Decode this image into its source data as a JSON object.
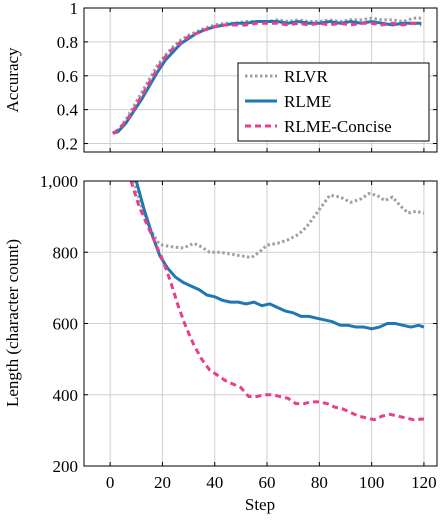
{
  "colors": {
    "rlvr": "#a0a0a0",
    "rlme": "#1f77b4",
    "rlme_concise": "#e83e8c",
    "grid": "#d0d0d0",
    "frame": "#000000"
  },
  "chart_data": [
    {
      "type": "line",
      "title": "",
      "xlabel": "",
      "ylabel": "Accuracy",
      "xlim": [
        -10,
        125
      ],
      "ylim": [
        0.15,
        1.0
      ],
      "xticks": [
        0,
        20,
        40,
        60,
        80,
        100,
        120
      ],
      "yticks": [
        0.2,
        0.4,
        0.6,
        0.8,
        1.0
      ],
      "ytick_labels": [
        "0.2",
        "0.4",
        "0.6",
        "0.8",
        "1"
      ],
      "x_tick_labels_shown": false,
      "grid": true,
      "legend": "center-right",
      "series": [
        {
          "name": "RLVR",
          "key": "rlvr",
          "style": "dotted",
          "points": [
            [
              1,
              0.26
            ],
            [
              3,
              0.28
            ],
            [
              6,
              0.34
            ],
            [
              9,
              0.42
            ],
            [
              12,
              0.5
            ],
            [
              15,
              0.58
            ],
            [
              18,
              0.66
            ],
            [
              21,
              0.72
            ],
            [
              24,
              0.77
            ],
            [
              27,
              0.81
            ],
            [
              30,
              0.84
            ],
            [
              33,
              0.86
            ],
            [
              36,
              0.88
            ],
            [
              40,
              0.9
            ],
            [
              44,
              0.91
            ],
            [
              48,
              0.91
            ],
            [
              52,
              0.92
            ],
            [
              56,
              0.92
            ],
            [
              60,
              0.92
            ],
            [
              64,
              0.93
            ],
            [
              68,
              0.92
            ],
            [
              72,
              0.93
            ],
            [
              76,
              0.92
            ],
            [
              80,
              0.92
            ],
            [
              84,
              0.93
            ],
            [
              88,
              0.92
            ],
            [
              92,
              0.93
            ],
            [
              96,
              0.93
            ],
            [
              100,
              0.94
            ],
            [
              104,
              0.93
            ],
            [
              108,
              0.93
            ],
            [
              112,
              0.92
            ],
            [
              116,
              0.94
            ],
            [
              119,
              0.94
            ]
          ]
        },
        {
          "name": "RLME",
          "key": "rlme",
          "style": "solid",
          "points": [
            [
              1,
              0.26
            ],
            [
              3,
              0.27
            ],
            [
              6,
              0.32
            ],
            [
              9,
              0.39
            ],
            [
              12,
              0.46
            ],
            [
              15,
              0.54
            ],
            [
              18,
              0.62
            ],
            [
              21,
              0.69
            ],
            [
              24,
              0.74
            ],
            [
              27,
              0.79
            ],
            [
              30,
              0.82
            ],
            [
              33,
              0.85
            ],
            [
              36,
              0.87
            ],
            [
              40,
              0.89
            ],
            [
              44,
              0.9
            ],
            [
              48,
              0.91
            ],
            [
              52,
              0.91
            ],
            [
              56,
              0.92
            ],
            [
              60,
              0.92
            ],
            [
              64,
              0.92
            ],
            [
              68,
              0.91
            ],
            [
              72,
              0.92
            ],
            [
              76,
              0.91
            ],
            [
              80,
              0.91
            ],
            [
              84,
              0.92
            ],
            [
              88,
              0.91
            ],
            [
              92,
              0.92
            ],
            [
              96,
              0.91
            ],
            [
              100,
              0.92
            ],
            [
              104,
              0.91
            ],
            [
              108,
              0.9
            ],
            [
              112,
              0.91
            ],
            [
              116,
              0.91
            ],
            [
              119,
              0.91
            ]
          ]
        },
        {
          "name": "RLME-Concise",
          "key": "rlme_concise",
          "style": "dashed",
          "points": [
            [
              1,
              0.26
            ],
            [
              3,
              0.28
            ],
            [
              6,
              0.33
            ],
            [
              9,
              0.4
            ],
            [
              12,
              0.48
            ],
            [
              15,
              0.56
            ],
            [
              18,
              0.64
            ],
            [
              21,
              0.71
            ],
            [
              24,
              0.76
            ],
            [
              27,
              0.8
            ],
            [
              30,
              0.83
            ],
            [
              33,
              0.85
            ],
            [
              36,
              0.87
            ],
            [
              40,
              0.89
            ],
            [
              44,
              0.9
            ],
            [
              48,
              0.9
            ],
            [
              52,
              0.9
            ],
            [
              56,
              0.91
            ],
            [
              60,
              0.91
            ],
            [
              64,
              0.91
            ],
            [
              68,
              0.9
            ],
            [
              72,
              0.91
            ],
            [
              76,
              0.9
            ],
            [
              80,
              0.91
            ],
            [
              84,
              0.9
            ],
            [
              88,
              0.91
            ],
            [
              92,
              0.9
            ],
            [
              96,
              0.91
            ],
            [
              100,
              0.91
            ],
            [
              104,
              0.9
            ],
            [
              108,
              0.91
            ],
            [
              112,
              0.9
            ],
            [
              116,
              0.91
            ],
            [
              119,
              0.9
            ]
          ]
        }
      ]
    },
    {
      "type": "line",
      "title": "",
      "xlabel": "Step",
      "ylabel": "Length (character count)",
      "xlim": [
        -10,
        125
      ],
      "ylim": [
        200,
        1000
      ],
      "xticks": [
        0,
        20,
        40,
        60,
        80,
        100,
        120
      ],
      "xtick_labels": [
        "0",
        "20",
        "40",
        "60",
        "80",
        "100",
        "120"
      ],
      "yticks": [
        200,
        400,
        600,
        800,
        1000
      ],
      "ytick_labels": [
        "200",
        "400",
        "600",
        "800",
        "1,000"
      ],
      "grid": true,
      "series": [
        {
          "key": "rlvr",
          "style": "dotted",
          "points": [
            [
              9,
              1000
            ],
            [
              12,
              930
            ],
            [
              15,
              870
            ],
            [
              18,
              830
            ],
            [
              20,
              820
            ],
            [
              24,
              815
            ],
            [
              28,
              812
            ],
            [
              32,
              825
            ],
            [
              35,
              815
            ],
            [
              38,
              800
            ],
            [
              42,
              800
            ],
            [
              46,
              795
            ],
            [
              50,
              790
            ],
            [
              54,
              785
            ],
            [
              57,
              800
            ],
            [
              60,
              820
            ],
            [
              64,
              825
            ],
            [
              68,
              835
            ],
            [
              72,
              850
            ],
            [
              75,
              870
            ],
            [
              78,
              900
            ],
            [
              81,
              930
            ],
            [
              84,
              960
            ],
            [
              88,
              955
            ],
            [
              92,
              940
            ],
            [
              96,
              950
            ],
            [
              99,
              965
            ],
            [
              102,
              960
            ],
            [
              105,
              945
            ],
            [
              108,
              955
            ],
            [
              111,
              930
            ],
            [
              114,
              910
            ],
            [
              117,
              915
            ],
            [
              120,
              910
            ]
          ]
        },
        {
          "key": "rlme",
          "style": "solid",
          "points": [
            [
              10,
              1000
            ],
            [
              13,
              920
            ],
            [
              16,
              850
            ],
            [
              19,
              790
            ],
            [
              22,
              755
            ],
            [
              25,
              730
            ],
            [
              28,
              715
            ],
            [
              31,
              705
            ],
            [
              34,
              695
            ],
            [
              37,
              680
            ],
            [
              40,
              675
            ],
            [
              43,
              665
            ],
            [
              46,
              660
            ],
            [
              49,
              660
            ],
            [
              52,
              655
            ],
            [
              55,
              660
            ],
            [
              58,
              650
            ],
            [
              61,
              655
            ],
            [
              64,
              645
            ],
            [
              67,
              635
            ],
            [
              70,
              630
            ],
            [
              73,
              620
            ],
            [
              76,
              620
            ],
            [
              79,
              615
            ],
            [
              82,
              610
            ],
            [
              85,
              605
            ],
            [
              88,
              595
            ],
            [
              91,
              595
            ],
            [
              94,
              590
            ],
            [
              97,
              590
            ],
            [
              100,
              585
            ],
            [
              103,
              590
            ],
            [
              106,
              600
            ],
            [
              109,
              600
            ],
            [
              112,
              595
            ],
            [
              115,
              590
            ],
            [
              118,
              595
            ],
            [
              120,
              590
            ]
          ]
        },
        {
          "key": "rlme_concise",
          "style": "dashed",
          "points": [
            [
              8,
              1000
            ],
            [
              11,
              930
            ],
            [
              14,
              880
            ],
            [
              17,
              830
            ],
            [
              20,
              780
            ],
            [
              23,
              720
            ],
            [
              26,
              650
            ],
            [
              29,
              590
            ],
            [
              32,
              540
            ],
            [
              35,
              500
            ],
            [
              38,
              470
            ],
            [
              41,
              455
            ],
            [
              44,
              440
            ],
            [
              47,
              430
            ],
            [
              50,
              420
            ],
            [
              53,
              395
            ],
            [
              56,
              395
            ],
            [
              59,
              400
            ],
            [
              62,
              400
            ],
            [
              65,
              395
            ],
            [
              68,
              390
            ],
            [
              71,
              375
            ],
            [
              74,
              375
            ],
            [
              77,
              380
            ],
            [
              80,
              380
            ],
            [
              83,
              375
            ],
            [
              86,
              365
            ],
            [
              89,
              360
            ],
            [
              92,
              350
            ],
            [
              95,
              340
            ],
            [
              98,
              335
            ],
            [
              101,
              330
            ],
            [
              104,
              340
            ],
            [
              107,
              345
            ],
            [
              110,
              340
            ],
            [
              113,
              335
            ],
            [
              116,
              330
            ],
            [
              120,
              332
            ]
          ]
        }
      ]
    }
  ]
}
